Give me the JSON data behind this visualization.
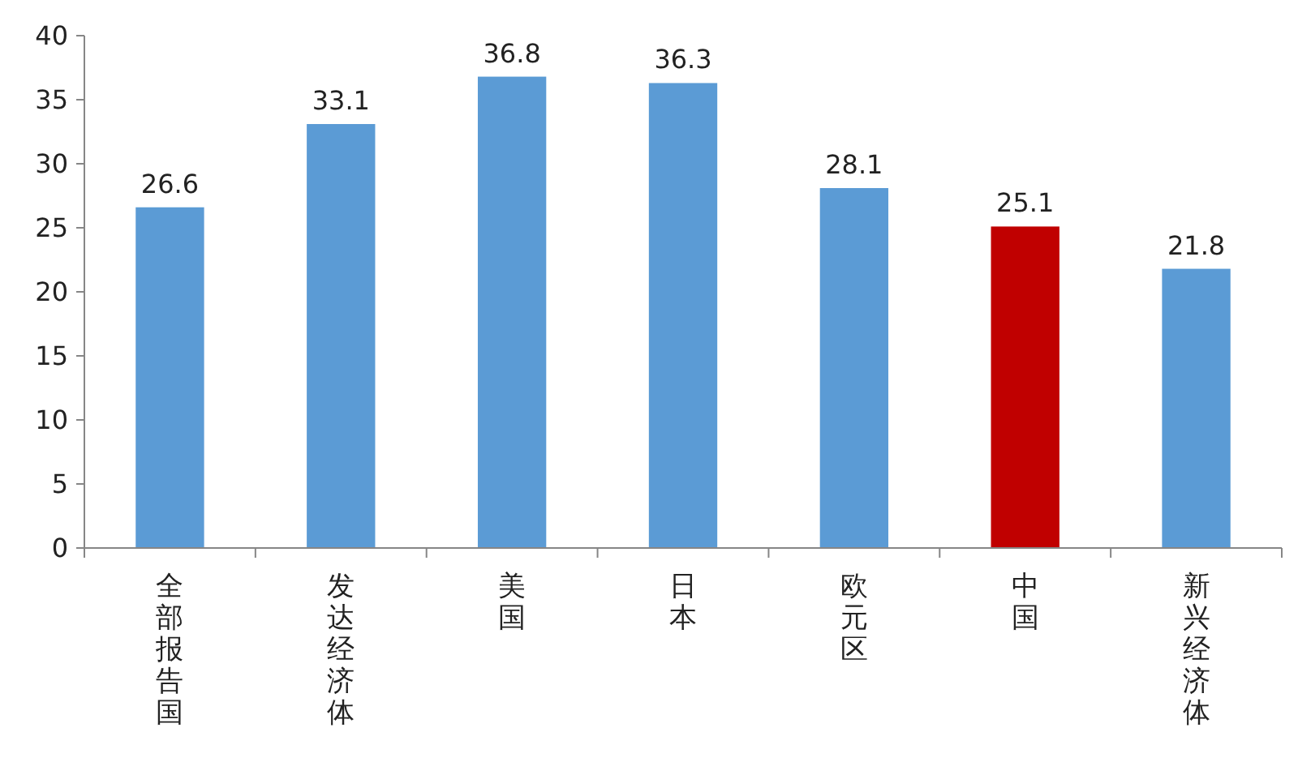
{
  "chart_data": {
    "type": "bar",
    "categories": [
      "全部报告国",
      "发达经济体",
      "美国",
      "日本",
      "欧元区",
      "中国",
      "新兴经济体"
    ],
    "values": [
      26.6,
      33.1,
      36.8,
      36.3,
      28.1,
      25.1,
      21.8
    ],
    "colors": [
      "#5b9bd5",
      "#5b9bd5",
      "#5b9bd5",
      "#5b9bd5",
      "#5b9bd5",
      "#c00000",
      "#5b9bd5"
    ],
    "ylim": [
      0,
      40
    ],
    "yticks": [
      0,
      5,
      10,
      15,
      20,
      25,
      30,
      35,
      40
    ],
    "data_labels": true
  }
}
